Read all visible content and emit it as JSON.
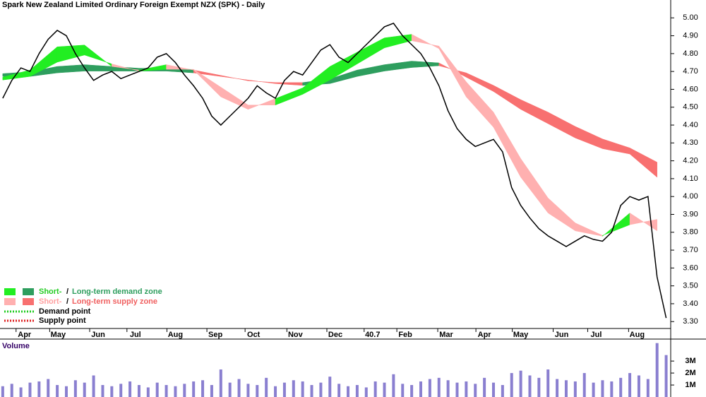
{
  "chart_data": [
    {
      "type": "line",
      "title": "Spark New Zealand Limited Ordinary Foreign Exempt NZX (SPK) - Daily",
      "x": [
        0,
        1,
        2,
        3,
        4,
        5,
        6,
        7,
        8,
        9,
        10,
        11,
        12,
        13,
        14,
        15,
        16,
        17,
        18,
        19,
        20,
        21,
        22,
        23,
        24,
        25,
        26,
        27,
        28,
        29,
        30,
        31,
        32,
        33,
        34,
        35,
        36,
        37,
        38,
        39,
        40,
        41,
        42,
        43,
        44,
        45,
        46,
        47,
        48,
        49,
        50,
        51,
        52,
        53,
        54,
        55,
        56,
        57,
        58,
        59,
        60,
        61,
        62,
        63,
        64,
        65,
        66,
        67,
        68,
        69,
        70,
        71,
        72,
        73
      ],
      "values": [
        4.55,
        4.65,
        4.72,
        4.7,
        4.8,
        4.88,
        4.93,
        4.9,
        4.8,
        4.72,
        4.65,
        4.68,
        4.7,
        4.66,
        4.68,
        4.7,
        4.72,
        4.78,
        4.8,
        4.75,
        4.68,
        4.62,
        4.55,
        4.45,
        4.4,
        4.45,
        4.5,
        4.55,
        4.62,
        4.58,
        4.55,
        4.65,
        4.7,
        4.68,
        4.75,
        4.82,
        4.85,
        4.78,
        4.75,
        4.8,
        4.85,
        4.9,
        4.95,
        4.97,
        4.9,
        4.85,
        4.8,
        4.72,
        4.62,
        4.48,
        4.38,
        4.32,
        4.28,
        4.3,
        4.32,
        4.25,
        4.05,
        3.95,
        3.88,
        3.82,
        3.78,
        3.75,
        3.72,
        3.75,
        3.78,
        3.76,
        3.75,
        3.8,
        3.95,
        4.0,
        3.98,
        4.0,
        3.55,
        3.32
      ],
      "color": "#000000",
      "bands": {
        "x": [
          0,
          3,
          6,
          9,
          12,
          15,
          18,
          21,
          24,
          27,
          30,
          33,
          36,
          39,
          42,
          45,
          48,
          51,
          54,
          57,
          60,
          63,
          66,
          69,
          72
        ],
        "short_fast": [
          4.66,
          4.7,
          4.83,
          4.84,
          4.72,
          4.7,
          4.73,
          4.7,
          4.55,
          4.48,
          4.54,
          4.6,
          4.72,
          4.8,
          4.88,
          4.9,
          4.82,
          4.55,
          4.38,
          4.1,
          3.9,
          3.8,
          3.77,
          3.9,
          3.8
        ],
        "short_slow": [
          4.66,
          4.68,
          4.76,
          4.8,
          4.75,
          4.71,
          4.72,
          4.72,
          4.62,
          4.52,
          4.52,
          4.58,
          4.66,
          4.75,
          4.84,
          4.88,
          4.85,
          4.65,
          4.48,
          4.22,
          4.0,
          3.86,
          3.79,
          3.85,
          3.88
        ],
        "long_fast": [
          4.68,
          4.69,
          4.72,
          4.73,
          4.72,
          4.71,
          4.71,
          4.7,
          4.67,
          4.64,
          4.63,
          4.63,
          4.65,
          4.7,
          4.73,
          4.75,
          4.74,
          4.66,
          4.58,
          4.48,
          4.4,
          4.32,
          4.26,
          4.23,
          4.1
        ],
        "long_slow": [
          4.68,
          4.68,
          4.7,
          4.71,
          4.71,
          4.71,
          4.71,
          4.7,
          4.68,
          4.66,
          4.64,
          4.63,
          4.64,
          4.68,
          4.71,
          4.73,
          4.74,
          4.7,
          4.63,
          4.55,
          4.48,
          4.4,
          4.33,
          4.28,
          4.2
        ],
        "colors": {
          "short_demand": "#22ee22",
          "long_demand": "#2e9e5e",
          "short_supply": "#ffb0b0",
          "long_supply": "#f87070"
        }
      },
      "legend": [
        {
          "short": "Short-",
          "sep": " / ",
          "long": "Long-term demand zone"
        },
        {
          "short": "Short-",
          "sep": " / ",
          "long": "Long-term supply zone"
        },
        {
          "text": "Demand point",
          "color": "#22cc22"
        },
        {
          "text": "Supply point",
          "color": "#dd2222"
        }
      ],
      "xlim": [
        -0.3,
        73.5
      ],
      "xticks": [
        {
          "value": 2.4,
          "label": "Apr"
        },
        {
          "value": 6.1,
          "label": "May"
        },
        {
          "value": 10.5,
          "label": "Jun"
        },
        {
          "value": 14.6,
          "label": "Jul"
        },
        {
          "value": 19,
          "label": "Aug"
        },
        {
          "value": 23.4,
          "label": "Sep"
        },
        {
          "value": 27.6,
          "label": "Oct"
        },
        {
          "value": 32.2,
          "label": "Nov"
        },
        {
          "value": 36.6,
          "label": "Dec"
        },
        40.7,
        {
          "value": 44.3,
          "label": "Feb"
        },
        {
          "value": 48.8,
          "label": "Mar"
        },
        {
          "value": 53,
          "label": "Apr"
        },
        {
          "value": 57,
          "label": "May"
        },
        {
          "value": 61.5,
          "label": "Jun"
        },
        {
          "value": 65.3,
          "label": "Jul"
        },
        {
          "value": 69.8,
          "label": "Aug"
        }
      ],
      "ylim": [
        3.21,
        5.1
      ],
      "yticks": [
        {
          "value": 3.3,
          "label": "3.30"
        },
        {
          "value": 3.4,
          "label": "3.40"
        },
        {
          "value": 3.5,
          "label": "3.50"
        },
        {
          "value": 3.6,
          "label": "3.60"
        },
        {
          "value": 3.7,
          "label": "3.70"
        },
        {
          "value": 3.8,
          "label": "3.80"
        },
        {
          "value": 3.9,
          "label": "3.90"
        },
        {
          "value": 4.0,
          "label": "4.00"
        },
        {
          "value": 4.1,
          "label": "4.10"
        },
        {
          "value": 4.2,
          "label": "4.20"
        },
        {
          "value": 4.3,
          "label": "4.30"
        },
        {
          "value": 4.4,
          "label": "4.40"
        },
        {
          "value": 4.5,
          "label": "4.50"
        },
        {
          "value": 4.6,
          "label": "4.60"
        },
        {
          "value": 4.7,
          "label": "4.70"
        },
        {
          "value": 4.8,
          "label": "4.80"
        },
        {
          "value": 4.9,
          "label": "4.90"
        },
        {
          "value": 5.0,
          "label": "5.00"
        }
      ]
    },
    {
      "type": "bar",
      "title": "Volume",
      "x": [
        0,
        1,
        2,
        3,
        4,
        5,
        6,
        7,
        8,
        9,
        10,
        11,
        12,
        13,
        14,
        15,
        16,
        17,
        18,
        19,
        20,
        21,
        22,
        23,
        24,
        25,
        26,
        27,
        28,
        29,
        30,
        31,
        32,
        33,
        34,
        35,
        36,
        37,
        38,
        39,
        40,
        41,
        42,
        43,
        44,
        45,
        46,
        47,
        48,
        49,
        50,
        51,
        52,
        53,
        54,
        55,
        56,
        57,
        58,
        59,
        60,
        61,
        62,
        63,
        64,
        65,
        66,
        67,
        68,
        69,
        70,
        71,
        72,
        73
      ],
      "values": [
        900000,
        1100000,
        800000,
        1200000,
        1300000,
        1500000,
        1000000,
        900000,
        1400000,
        1200000,
        1800000,
        1000000,
        900000,
        1100000,
        1300000,
        1000000,
        800000,
        1200000,
        1000000,
        900000,
        1100000,
        1300000,
        1400000,
        1000000,
        2300000,
        1200000,
        1500000,
        1100000,
        1000000,
        1600000,
        900000,
        1200000,
        1400000,
        1300000,
        1000000,
        1200000,
        1700000,
        1100000,
        900000,
        1000000,
        800000,
        1300000,
        1200000,
        1900000,
        1100000,
        1000000,
        1300000,
        1500000,
        1600000,
        1400000,
        1200000,
        1300000,
        1100000,
        1600000,
        1200000,
        1000000,
        2000000,
        2200000,
        1800000,
        1600000,
        2300000,
        1500000,
        1400000,
        1300000,
        2000000,
        1200000,
        1400000,
        1300000,
        1600000,
        2000000,
        1800000,
        1500000,
        4500000,
        3500000
      ],
      "color": "#8a7fd0",
      "ylim": [
        0,
        4600000
      ],
      "yticks": [
        {
          "value": 1000000,
          "label": "1M"
        },
        {
          "value": 2000000,
          "label": "2M"
        },
        {
          "value": 3000000,
          "label": "3M"
        }
      ]
    }
  ]
}
